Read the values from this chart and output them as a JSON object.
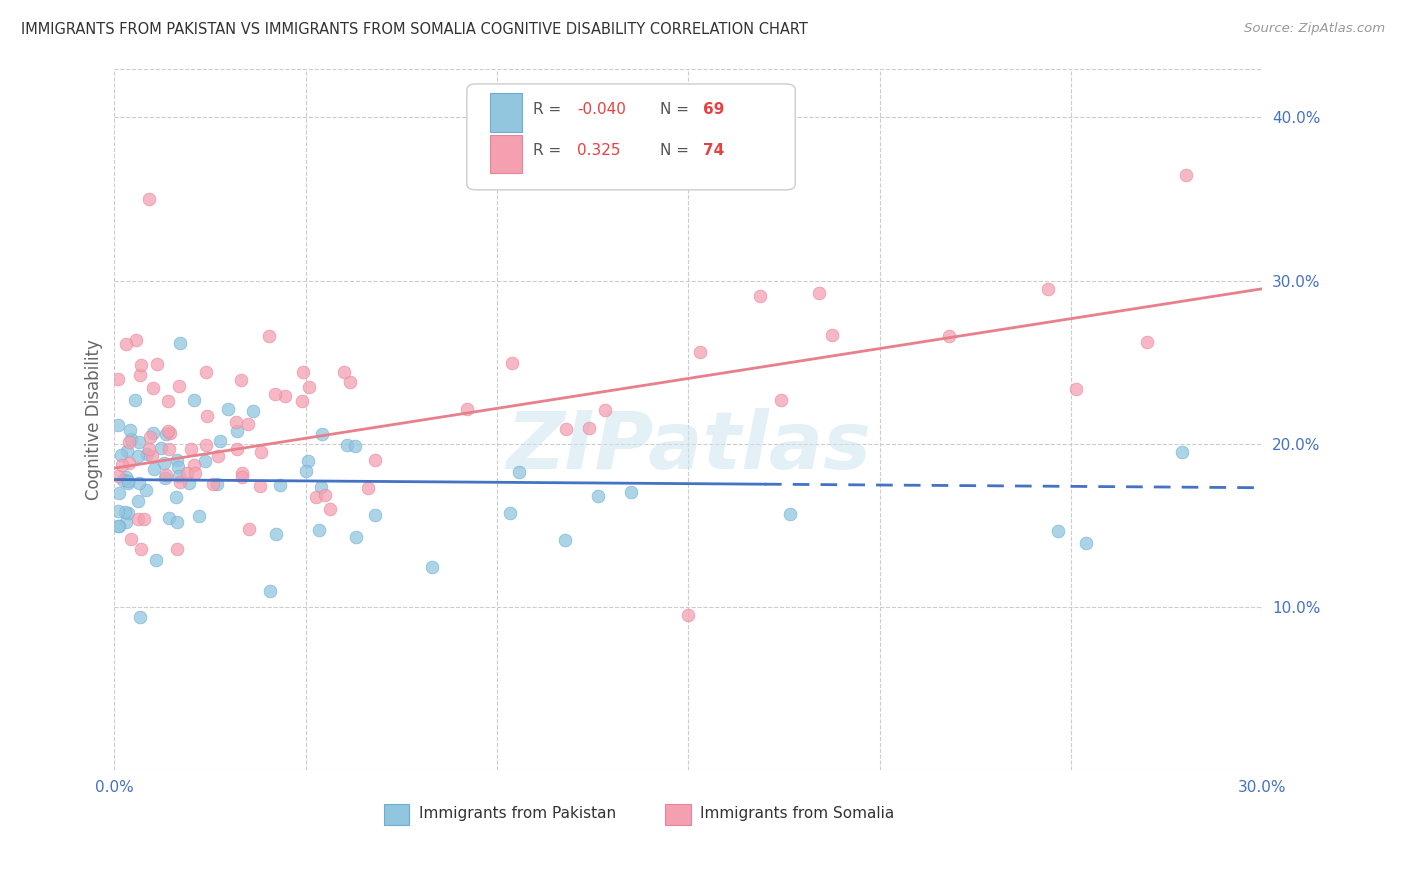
{
  "title": "IMMIGRANTS FROM PAKISTAN VS IMMIGRANTS FROM SOMALIA COGNITIVE DISABILITY CORRELATION CHART",
  "source": "Source: ZipAtlas.com",
  "ylabel": "Cognitive Disability",
  "xlim": [
    0.0,
    0.3
  ],
  "ylim": [
    0.0,
    0.43
  ],
  "x_ticks": [
    0.0,
    0.05,
    0.1,
    0.15,
    0.2,
    0.25,
    0.3
  ],
  "x_tick_labels": [
    "0.0%",
    "",
    "",
    "",
    "",
    "",
    "30.0%"
  ],
  "y_ticks_right": [
    0.1,
    0.2,
    0.3,
    0.4
  ],
  "y_tick_labels_right": [
    "10.0%",
    "20.0%",
    "30.0%",
    "40.0%"
  ],
  "pak_color": "#92c5de",
  "pak_edge": "#6aaed6",
  "pak_line_color": "#4472c4",
  "som_color": "#f4a0b0",
  "som_edge": "#e8849a",
  "som_line_color": "#e87f8c",
  "R_pak": -0.04,
  "N_pak": 69,
  "R_som": 0.325,
  "N_som": 74,
  "pak_line_solid_end": 0.17,
  "watermark": "ZIPatlas",
  "background_color": "#ffffff",
  "grid_color": "#cccccc",
  "title_color": "#333333",
  "source_color": "#999999",
  "label_color": "#4472c4",
  "legend_text_color": "#555555",
  "legend_R_color": "#e84040",
  "legend_N_color": "#e84040"
}
